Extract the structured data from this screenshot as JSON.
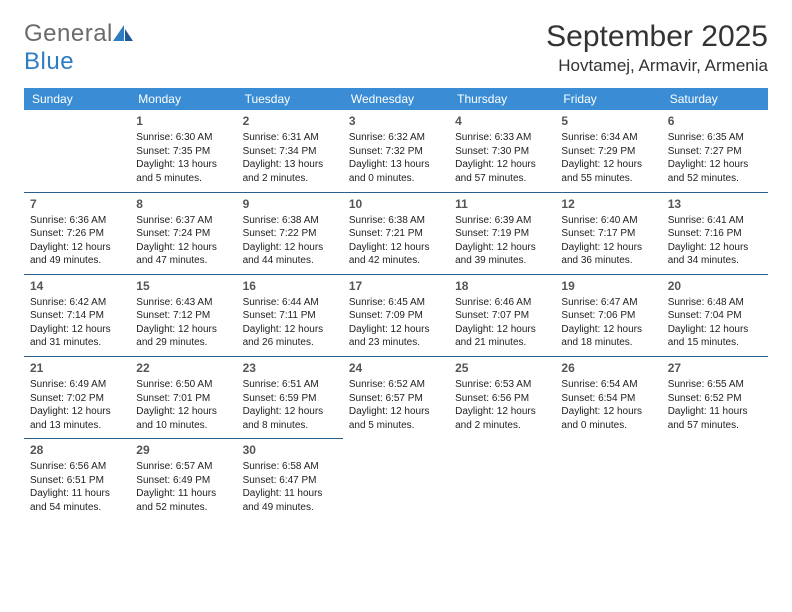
{
  "logo": {
    "text_general": "General",
    "text_blue": "Blue"
  },
  "title": {
    "month": "September 2025",
    "location": "Hovtamej, Armavir, Armenia"
  },
  "weekdays": [
    "Sunday",
    "Monday",
    "Tuesday",
    "Wednesday",
    "Thursday",
    "Friday",
    "Saturday"
  ],
  "colors": {
    "header_bg": "#3a8dd4",
    "header_text": "#ffffff",
    "divider": "#2a5f8f",
    "logo_gray": "#6b6b6b",
    "logo_blue": "#2e7dc3"
  },
  "fonts": {
    "title_size": 30,
    "location_size": 17,
    "weekday_size": 12,
    "daynum_size": 12,
    "body_size": 10
  },
  "weeks": [
    [
      null,
      {
        "n": "1",
        "sr": "Sunrise: 6:30 AM",
        "ss": "Sunset: 7:35 PM",
        "dl": "Daylight: 13 hours and 5 minutes."
      },
      {
        "n": "2",
        "sr": "Sunrise: 6:31 AM",
        "ss": "Sunset: 7:34 PM",
        "dl": "Daylight: 13 hours and 2 minutes."
      },
      {
        "n": "3",
        "sr": "Sunrise: 6:32 AM",
        "ss": "Sunset: 7:32 PM",
        "dl": "Daylight: 13 hours and 0 minutes."
      },
      {
        "n": "4",
        "sr": "Sunrise: 6:33 AM",
        "ss": "Sunset: 7:30 PM",
        "dl": "Daylight: 12 hours and 57 minutes."
      },
      {
        "n": "5",
        "sr": "Sunrise: 6:34 AM",
        "ss": "Sunset: 7:29 PM",
        "dl": "Daylight: 12 hours and 55 minutes."
      },
      {
        "n": "6",
        "sr": "Sunrise: 6:35 AM",
        "ss": "Sunset: 7:27 PM",
        "dl": "Daylight: 12 hours and 52 minutes."
      }
    ],
    [
      {
        "n": "7",
        "sr": "Sunrise: 6:36 AM",
        "ss": "Sunset: 7:26 PM",
        "dl": "Daylight: 12 hours and 49 minutes."
      },
      {
        "n": "8",
        "sr": "Sunrise: 6:37 AM",
        "ss": "Sunset: 7:24 PM",
        "dl": "Daylight: 12 hours and 47 minutes."
      },
      {
        "n": "9",
        "sr": "Sunrise: 6:38 AM",
        "ss": "Sunset: 7:22 PM",
        "dl": "Daylight: 12 hours and 44 minutes."
      },
      {
        "n": "10",
        "sr": "Sunrise: 6:38 AM",
        "ss": "Sunset: 7:21 PM",
        "dl": "Daylight: 12 hours and 42 minutes."
      },
      {
        "n": "11",
        "sr": "Sunrise: 6:39 AM",
        "ss": "Sunset: 7:19 PM",
        "dl": "Daylight: 12 hours and 39 minutes."
      },
      {
        "n": "12",
        "sr": "Sunrise: 6:40 AM",
        "ss": "Sunset: 7:17 PM",
        "dl": "Daylight: 12 hours and 36 minutes."
      },
      {
        "n": "13",
        "sr": "Sunrise: 6:41 AM",
        "ss": "Sunset: 7:16 PM",
        "dl": "Daylight: 12 hours and 34 minutes."
      }
    ],
    [
      {
        "n": "14",
        "sr": "Sunrise: 6:42 AM",
        "ss": "Sunset: 7:14 PM",
        "dl": "Daylight: 12 hours and 31 minutes."
      },
      {
        "n": "15",
        "sr": "Sunrise: 6:43 AM",
        "ss": "Sunset: 7:12 PM",
        "dl": "Daylight: 12 hours and 29 minutes."
      },
      {
        "n": "16",
        "sr": "Sunrise: 6:44 AM",
        "ss": "Sunset: 7:11 PM",
        "dl": "Daylight: 12 hours and 26 minutes."
      },
      {
        "n": "17",
        "sr": "Sunrise: 6:45 AM",
        "ss": "Sunset: 7:09 PM",
        "dl": "Daylight: 12 hours and 23 minutes."
      },
      {
        "n": "18",
        "sr": "Sunrise: 6:46 AM",
        "ss": "Sunset: 7:07 PM",
        "dl": "Daylight: 12 hours and 21 minutes."
      },
      {
        "n": "19",
        "sr": "Sunrise: 6:47 AM",
        "ss": "Sunset: 7:06 PM",
        "dl": "Daylight: 12 hours and 18 minutes."
      },
      {
        "n": "20",
        "sr": "Sunrise: 6:48 AM",
        "ss": "Sunset: 7:04 PM",
        "dl": "Daylight: 12 hours and 15 minutes."
      }
    ],
    [
      {
        "n": "21",
        "sr": "Sunrise: 6:49 AM",
        "ss": "Sunset: 7:02 PM",
        "dl": "Daylight: 12 hours and 13 minutes."
      },
      {
        "n": "22",
        "sr": "Sunrise: 6:50 AM",
        "ss": "Sunset: 7:01 PM",
        "dl": "Daylight: 12 hours and 10 minutes."
      },
      {
        "n": "23",
        "sr": "Sunrise: 6:51 AM",
        "ss": "Sunset: 6:59 PM",
        "dl": "Daylight: 12 hours and 8 minutes."
      },
      {
        "n": "24",
        "sr": "Sunrise: 6:52 AM",
        "ss": "Sunset: 6:57 PM",
        "dl": "Daylight: 12 hours and 5 minutes."
      },
      {
        "n": "25",
        "sr": "Sunrise: 6:53 AM",
        "ss": "Sunset: 6:56 PM",
        "dl": "Daylight: 12 hours and 2 minutes."
      },
      {
        "n": "26",
        "sr": "Sunrise: 6:54 AM",
        "ss": "Sunset: 6:54 PM",
        "dl": "Daylight: 12 hours and 0 minutes."
      },
      {
        "n": "27",
        "sr": "Sunrise: 6:55 AM",
        "ss": "Sunset: 6:52 PM",
        "dl": "Daylight: 11 hours and 57 minutes."
      }
    ],
    [
      {
        "n": "28",
        "sr": "Sunrise: 6:56 AM",
        "ss": "Sunset: 6:51 PM",
        "dl": "Daylight: 11 hours and 54 minutes."
      },
      {
        "n": "29",
        "sr": "Sunrise: 6:57 AM",
        "ss": "Sunset: 6:49 PM",
        "dl": "Daylight: 11 hours and 52 minutes."
      },
      {
        "n": "30",
        "sr": "Sunrise: 6:58 AM",
        "ss": "Sunset: 6:47 PM",
        "dl": "Daylight: 11 hours and 49 minutes."
      },
      null,
      null,
      null,
      null
    ]
  ]
}
